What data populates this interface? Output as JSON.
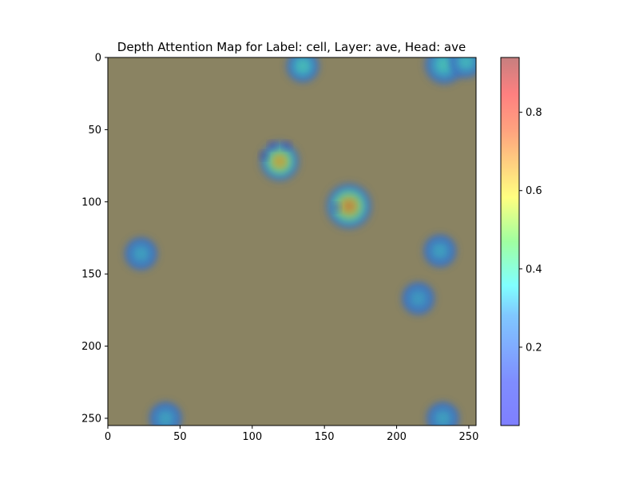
{
  "chart_data": {
    "type": "heatmap",
    "title": "Depth Attention Map for Label: cell, Layer: ave, Head: ave",
    "xlabel": "",
    "ylabel": "",
    "xlim": [
      0,
      255
    ],
    "ylim": [
      255,
      0
    ],
    "x_ticks": [
      0,
      50,
      100,
      150,
      200,
      250
    ],
    "y_ticks": [
      0,
      50,
      100,
      150,
      200,
      250
    ],
    "grid": false,
    "colormap": "jet",
    "colormap_alpha": 0.5,
    "background_tint": "#8a8362",
    "colorbar": {
      "range": [
        0.0,
        0.94
      ],
      "ticks": [
        0.2,
        0.4,
        0.6,
        0.8
      ],
      "tick_labels": [
        "0.2",
        "0.4",
        "0.6",
        "0.8"
      ],
      "position": "right"
    },
    "hotspots": [
      {
        "x": 119,
        "y": 72,
        "peak": 0.85,
        "spread": 6
      },
      {
        "x": 167,
        "y": 103,
        "peak": 0.9,
        "spread": 7
      },
      {
        "x": 135,
        "y": 6,
        "peak": 0.45,
        "spread": 5
      },
      {
        "x": 233,
        "y": 5,
        "peak": 0.45,
        "spread": 6
      },
      {
        "x": 248,
        "y": 3,
        "peak": 0.42,
        "spread": 5
      },
      {
        "x": 23,
        "y": 136,
        "peak": 0.35,
        "spread": 5
      },
      {
        "x": 230,
        "y": 134,
        "peak": 0.35,
        "spread": 5
      },
      {
        "x": 215,
        "y": 167,
        "peak": 0.33,
        "spread": 5
      },
      {
        "x": 40,
        "y": 250,
        "peak": 0.35,
        "spread": 5
      },
      {
        "x": 232,
        "y": 250,
        "peak": 0.35,
        "spread": 5
      }
    ],
    "lowspots": [
      {
        "x": 108,
        "y": 68,
        "value": 0.05
      },
      {
        "x": 114,
        "y": 61,
        "value": 0.1
      },
      {
        "x": 124,
        "y": 61,
        "value": 0.1
      },
      {
        "x": 158,
        "y": 104,
        "value": 0.1
      }
    ]
  }
}
